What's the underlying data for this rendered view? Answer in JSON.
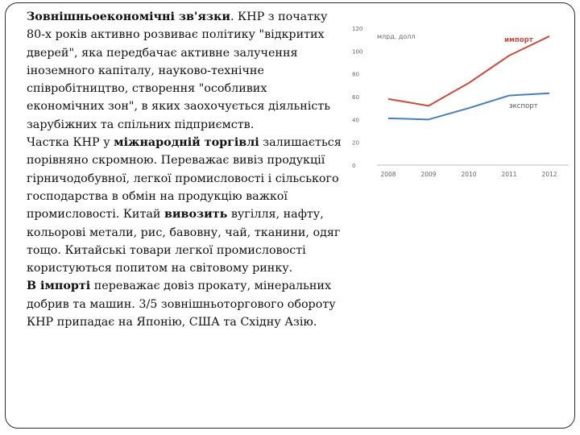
{
  "text": {
    "p1_bold": "Зовнішньоекономічні зв'язки",
    "p1_rest": ". КНР з початку 80-х років активно розвиває політику \"відкритих дверей\", яка передбачає активне залучення іноземного капіталу, науково-технічне співробітництво, створення \"особливих економічних зон\", в яких заохочується діяльність зарубіжних та спільних підприємств.",
    "p2_a": "Частка КНР у ",
    "p2_bold": "міжнародній торгівлі",
    "p2_b": " залишається порівняно скромною. Переважає вивіз продукції гірничодобувної, легкої промисловості і сільського господарства в обмін на продукцію важкої промисловості. Китай ",
    "p2_bold2": "вивозить",
    "p2_c": " вугілля, нафту, кольорові метали, рис, бавовну, чай, тканини, одяг тощо. Китайські товари легкої промисловості користуються попитом на світовому ринку.",
    "p3_bold": "В імпорті",
    "p3_rest": " переважає довіз прокату, мінеральних добрив та машин. 3/5 зовнішньоторгового обороту КНР припадає на Японію, США та Східну Азію."
  },
  "chart_data": {
    "type": "line",
    "ylabel": "млрд. долл",
    "x": [
      "2008",
      "2009",
      "2010",
      "2011",
      "2012"
    ],
    "ylim": [
      0,
      120
    ],
    "yticks": [
      "0",
      "20",
      "40",
      "60",
      "80",
      "100",
      "120"
    ],
    "grid": false,
    "series": [
      {
        "name": "импорт",
        "color": "#cc4b3f",
        "values": [
          58,
          52,
          72,
          96,
          113
        ]
      },
      {
        "name": "экспорт",
        "color": "#4a7ebb",
        "values": [
          41,
          40,
          50,
          61,
          63
        ]
      }
    ]
  }
}
